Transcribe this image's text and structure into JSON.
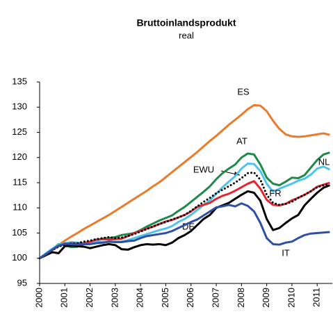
{
  "chart_data": {
    "type": "line",
    "title": "Bruttoinlandsprodukt",
    "subtitle": "real",
    "x": [
      2000,
      2000.25,
      2000.5,
      2000.75,
      2001,
      2001.25,
      2001.5,
      2001.75,
      2002,
      2002.25,
      2002.5,
      2002.75,
      2003,
      2003.25,
      2003.5,
      2003.75,
      2004,
      2004.25,
      2004.5,
      2004.75,
      2005,
      2005.25,
      2005.5,
      2005.75,
      2006,
      2006.25,
      2006.5,
      2006.75,
      2007,
      2007.25,
      2007.5,
      2007.75,
      2008,
      2008.25,
      2008.5,
      2008.75,
      2009,
      2009.25,
      2009.5,
      2009.75,
      2010,
      2010.25,
      2010.5,
      2010.75,
      2011,
      2011.25,
      2011.5
    ],
    "xlim": [
      2000,
      2011.6
    ],
    "xticks": [
      2000,
      2001,
      2002,
      2003,
      2004,
      2005,
      2006,
      2007,
      2008,
      2009,
      2010,
      2011
    ],
    "ylim": [
      95,
      135
    ],
    "yticks": [
      95,
      100,
      105,
      110,
      115,
      120,
      125,
      130,
      135
    ],
    "series": [
      {
        "name": "ES",
        "color": "#ec7a2b",
        "values": [
          100,
          100.9,
          101.8,
          102.6,
          103.5,
          104.3,
          105.0,
          105.8,
          106.5,
          107.2,
          107.9,
          108.6,
          109.4,
          110.2,
          111.0,
          111.8,
          112.6,
          113.4,
          114.3,
          115.1,
          116.1,
          117.1,
          118.1,
          119.1,
          120.1,
          121.1,
          122.2,
          123.3,
          124.3,
          125.4,
          126.5,
          127.5,
          128.5,
          129.6,
          130.4,
          130.3,
          129.2,
          127.3,
          125.7,
          124.6,
          124.2,
          124.1,
          124.2,
          124.4,
          124.6,
          124.8,
          124.5
        ]
      },
      {
        "name": "AT",
        "color": "#1e8a4a",
        "values": [
          100,
          100.9,
          101.8,
          102.8,
          102.6,
          102.2,
          102.3,
          102.8,
          103.2,
          103.6,
          103.9,
          104.0,
          104.2,
          104.6,
          104.8,
          105.0,
          105.6,
          106.3,
          106.9,
          107.5,
          108.0,
          108.5,
          109.4,
          110.2,
          111.2,
          112.2,
          113.2,
          114.3,
          115.7,
          116.9,
          117.8,
          118.6,
          120.0,
          120.8,
          120.6,
          118.6,
          116.0,
          114.8,
          114.5,
          115.2,
          116.0,
          115.9,
          116.5,
          118.0,
          119.5,
          120.6,
          121.0
        ]
      },
      {
        "name": "NL",
        "color": "#4ec4ec",
        "values": [
          100,
          101.0,
          101.9,
          102.7,
          103.0,
          103.2,
          103.1,
          103.0,
          103.2,
          103.4,
          103.2,
          103.2,
          103.3,
          103.3,
          103.6,
          104.0,
          104.4,
          104.8,
          105.2,
          105.6,
          105.9,
          106.4,
          107.2,
          107.8,
          108.6,
          109.6,
          110.6,
          111.5,
          112.8,
          114.1,
          115.2,
          116.3,
          117.8,
          118.8,
          118.7,
          117.3,
          114.8,
          113.2,
          113.8,
          114.3,
          114.8,
          115.4,
          115.8,
          116.6,
          117.8,
          118.2,
          117.6
        ]
      },
      {
        "name": "FR",
        "color": "#e3262d",
        "values": [
          100,
          100.8,
          101.6,
          102.4,
          102.8,
          103.0,
          102.9,
          103.0,
          103.3,
          103.7,
          103.8,
          103.7,
          103.8,
          103.9,
          104.4,
          105.0,
          105.4,
          105.9,
          106.3,
          106.8,
          107.3,
          107.6,
          108.1,
          108.6,
          109.3,
          110.2,
          110.6,
          111.0,
          111.8,
          112.4,
          112.8,
          113.4,
          114.1,
          114.8,
          115.3,
          113.8,
          111.6,
          110.6,
          110.5,
          110.8,
          111.5,
          112.0,
          112.6,
          113.3,
          114.2,
          114.6,
          115.0
        ]
      },
      {
        "name": "EWU",
        "color": "#000000",
        "dash": "dotted",
        "values": [
          100,
          100.8,
          101.6,
          102.3,
          102.7,
          102.9,
          103.0,
          103.3,
          103.5,
          103.8,
          104.0,
          104.2,
          104.0,
          104.1,
          104.4,
          104.8,
          105.3,
          105.8,
          106.3,
          106.8,
          107.2,
          107.7,
          108.1,
          108.6,
          109.4,
          110.3,
          111.2,
          112.0,
          112.9,
          113.6,
          114.3,
          115.0,
          115.9,
          116.9,
          117.0,
          115.6,
          112.6,
          111.0,
          110.6,
          110.8,
          111.2,
          112.0,
          112.6,
          113.3,
          114.1,
          114.5,
          114.8
        ]
      },
      {
        "name": "DE",
        "color": "#000000",
        "values": [
          100,
          100.6,
          101.2,
          101.0,
          102.4,
          102.5,
          102.4,
          102.3,
          102.0,
          102.3,
          102.6,
          102.8,
          102.6,
          101.8,
          101.7,
          102.2,
          102.6,
          102.8,
          102.7,
          102.8,
          102.6,
          103.1,
          104.0,
          104.6,
          105.4,
          106.6,
          107.8,
          108.6,
          110.0,
          110.5,
          111.0,
          111.8,
          112.6,
          113.3,
          113.0,
          111.4,
          107.8,
          105.6,
          106.0,
          107.0,
          107.9,
          108.6,
          110.5,
          111.8,
          113.0,
          114.0,
          114.5
        ]
      },
      {
        "name": "IT",
        "color": "#2e4fa3",
        "values": [
          100,
          100.8,
          101.7,
          102.5,
          102.9,
          102.8,
          102.7,
          102.8,
          102.8,
          103.0,
          103.1,
          103.3,
          103.2,
          103.2,
          103.4,
          103.5,
          104.0,
          104.4,
          104.6,
          104.8,
          105.0,
          105.4,
          106.0,
          106.6,
          107.2,
          107.7,
          108.5,
          109.3,
          110.1,
          110.3,
          110.6,
          110.3,
          110.9,
          110.4,
          109.3,
          107.0,
          104.0,
          102.8,
          102.7,
          103.1,
          103.3,
          104.0,
          104.6,
          104.9,
          105.0,
          105.1,
          105.2
        ]
      }
    ]
  }
}
